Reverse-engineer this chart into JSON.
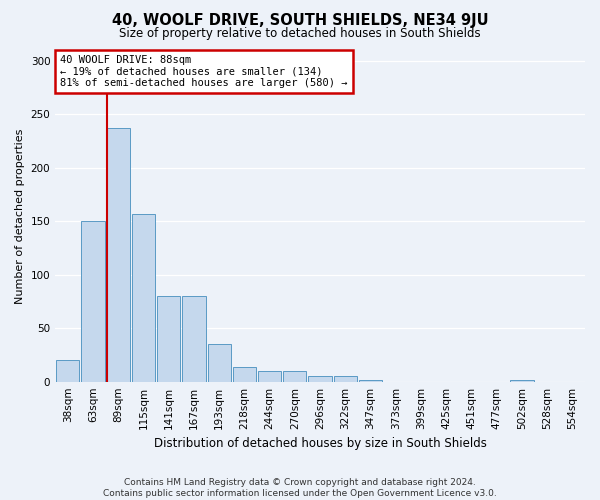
{
  "title": "40, WOOLF DRIVE, SOUTH SHIELDS, NE34 9JU",
  "subtitle": "Size of property relative to detached houses in South Shields",
  "xlabel": "Distribution of detached houses by size in South Shields",
  "ylabel": "Number of detached properties",
  "categories": [
    "38sqm",
    "63sqm",
    "89sqm",
    "115sqm",
    "141sqm",
    "167sqm",
    "193sqm",
    "218sqm",
    "244sqm",
    "270sqm",
    "296sqm",
    "322sqm",
    "347sqm",
    "373sqm",
    "399sqm",
    "425sqm",
    "451sqm",
    "477sqm",
    "502sqm",
    "528sqm",
    "554sqm"
  ],
  "values": [
    20,
    150,
    237,
    157,
    80,
    80,
    35,
    14,
    10,
    10,
    5,
    5,
    2,
    0,
    0,
    0,
    0,
    0,
    2,
    0,
    0
  ],
  "bar_color": "#c5d8ed",
  "bar_edge_color": "#5a9ac5",
  "vline_color": "#cc0000",
  "annotation_text": "40 WOOLF DRIVE: 88sqm\n← 19% of detached houses are smaller (134)\n81% of semi-detached houses are larger (580) →",
  "annotation_box_color": "#ffffff",
  "annotation_box_edge": "#cc0000",
  "ylim": [
    0,
    310
  ],
  "yticks": [
    0,
    50,
    100,
    150,
    200,
    250,
    300
  ],
  "background_color": "#edf2f9",
  "grid_color": "#ffffff",
  "footer": "Contains HM Land Registry data © Crown copyright and database right 2024.\nContains public sector information licensed under the Open Government Licence v3.0.",
  "title_fontsize": 10.5,
  "subtitle_fontsize": 8.5,
  "xlabel_fontsize": 8.5,
  "ylabel_fontsize": 8,
  "tick_fontsize": 7.5,
  "footer_fontsize": 6.5,
  "annot_fontsize": 7.5
}
